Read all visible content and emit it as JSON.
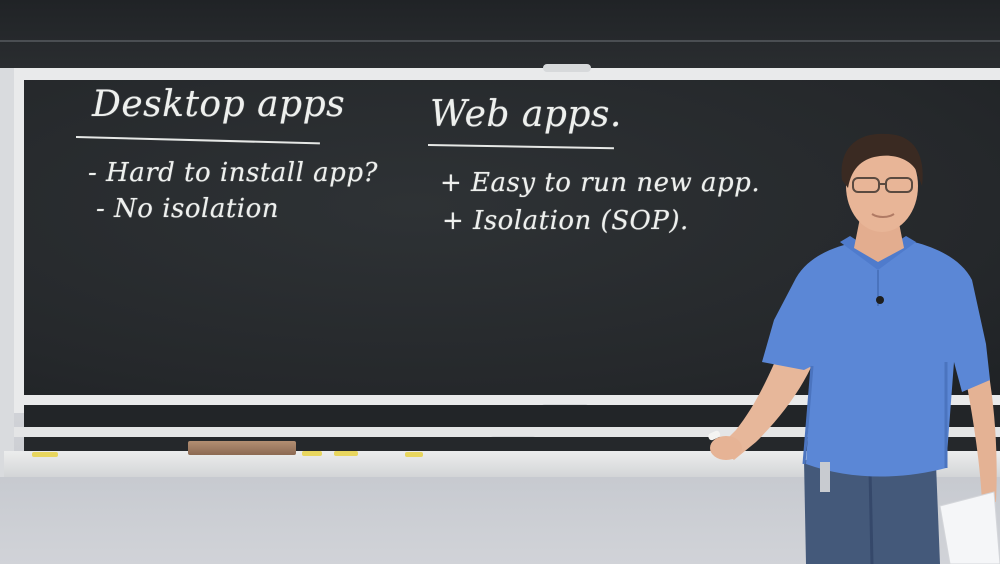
{
  "board": {
    "left_heading": "Desktop apps",
    "left_items": [
      "- Hard to install app?",
      "- No isolation"
    ],
    "right_heading": "Web apps.",
    "right_items": [
      "+ Easy to run new app.",
      "+ Isolation (SOP)."
    ]
  },
  "colors": {
    "chalkboard": "#272a2d",
    "chalk": "#eef0ee",
    "shirt": "#5b87d6",
    "frame": "#e9eaeb"
  }
}
